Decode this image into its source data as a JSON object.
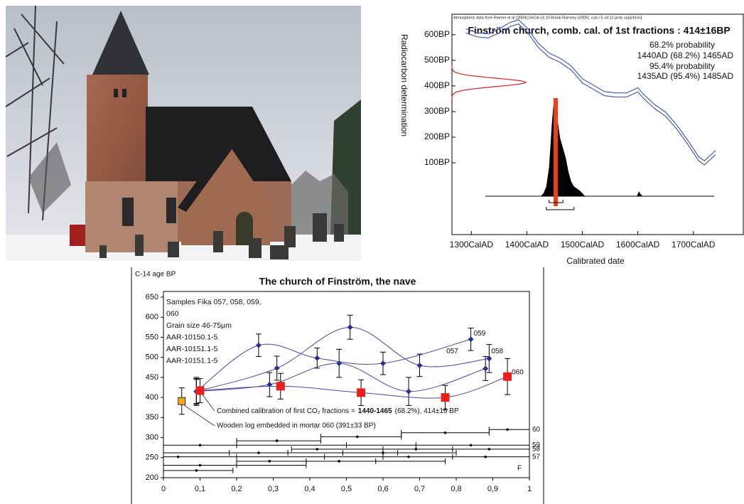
{
  "chart_data": [
    {
      "type": "line",
      "title": "Finström church, comb. cal. of 1st fractions : 414±16BP",
      "header": "Atmospheric data from Reimer et al (2004);OxCal v3.10 Bronk Ramsey (2005); cub r:5 sd:12 prob usp[chron]",
      "annotations": [
        "68.2% probability",
        "1440AD (68.2%) 1465AD",
        "95.4% probability",
        "1435AD (95.4%) 1485AD"
      ],
      "xlabel": "Calibrated date",
      "ylabel": "Radiocarbon determination",
      "xlim": [
        1265,
        1790
      ],
      "ylim": [
        -180,
        680
      ],
      "xticks": [
        {
          "value": 1300,
          "label": "1300CalAD"
        },
        {
          "value": 1400,
          "label": "1400CalAD"
        },
        {
          "value": 1500,
          "label": "1500CalAD"
        },
        {
          "value": 1600,
          "label": "1600CalAD"
        },
        {
          "value": 1700,
          "label": "1700CalAD"
        }
      ],
      "yticks": [
        {
          "value": 100,
          "label": "100BP"
        },
        {
          "value": 200,
          "label": "200BP"
        },
        {
          "value": 300,
          "label": "300BP"
        },
        {
          "value": 400,
          "label": "400BP"
        },
        {
          "value": 500,
          "label": "500BP"
        },
        {
          "value": 600,
          "label": "600BP"
        }
      ],
      "x": [
        1290,
        1310,
        1330,
        1350,
        1370,
        1385,
        1400,
        1420,
        1440,
        1460,
        1480,
        1500,
        1520,
        1540,
        1560,
        1580,
        1600,
        1610,
        1630,
        1650,
        1670,
        1690,
        1710,
        1720,
        1740
      ],
      "series": [
        {
          "color": "#4a5cb0",
          "values": [
            623,
            608,
            603,
            623,
            648,
            658,
            628,
            568,
            528,
            508,
            478,
            428,
            403,
            378,
            373,
            373,
            393,
            368,
            328,
            298,
            248,
            188,
            123,
            108,
            148
          ]
        },
        {
          "color": "#4a5cb0",
          "values": [
            607,
            592,
            587,
            607,
            632,
            642,
            612,
            552,
            512,
            492,
            462,
            412,
            387,
            362,
            357,
            357,
            377,
            352,
            312,
            282,
            232,
            172,
            107,
            92,
            132
          ]
        }
      ],
      "date_bp": 414,
      "error_bp": 16,
      "measurement_color": "#e02020",
      "probability": {
        "color": "#000000",
        "x": [
          1425,
          1430,
          1435,
          1440,
          1445,
          1448,
          1452,
          1455,
          1460,
          1465,
          1470,
          1475,
          1480,
          1485,
          1490,
          1495,
          1500,
          1505,
          1598,
          1602,
          1605,
          1609
        ],
        "values": [
          0,
          0.03,
          0.1,
          0.3,
          0.75,
          0.95,
          1.0,
          0.8,
          0.6,
          0.5,
          0.4,
          0.25,
          0.15,
          0.1,
          0.08,
          0.06,
          0.03,
          0,
          0,
          0.05,
          0.02,
          0
        ]
      },
      "marker_x": 1452,
      "marker_color": "#e8401c",
      "ranges": [
        [
          1440,
          1465
        ],
        [
          1435,
          1485
        ]
      ]
    },
    {
      "type": "scatter",
      "title": "The church of Finström, the nave",
      "ylabel": "C-14 age BP",
      "xlim": [
        0,
        1
      ],
      "ylim": [
        200,
        650
      ],
      "xticks": [
        0,
        {
          "value": 0.1,
          "label": "0,1"
        },
        {
          "value": 0.2,
          "label": "0,2"
        },
        {
          "value": 0.3,
          "label": "0,3"
        },
        {
          "value": 0.4,
          "label": "0,4"
        },
        {
          "value": 0.5,
          "label": "0,5"
        },
        {
          "value": 0.6,
          "label": "0,6"
        },
        {
          "value": 0.7,
          "label": "0,7"
        },
        {
          "value": 0.8,
          "label": "0,8"
        },
        {
          "value": 0.9,
          "label": "0,9"
        },
        1
      ],
      "yticks": [
        200,
        250,
        300,
        350,
        400,
        450,
        500,
        550,
        600,
        650
      ],
      "notes": [
        "Samples Fika 057, 058, 059,",
        "060",
        "Grain size 46-75μm",
        "AAR-10150.1-5",
        "AAR-10151.1-5",
        "AAR-10151.1-5"
      ],
      "combined_note": [
        "Combined calibration of first CO₂ fractions =",
        "1440-1465",
        "(68.2%), 414±16 BP"
      ],
      "wood_note": "Wooden log embedded in mortar 060 (391±33 BP)",
      "line_color": "#4848a0",
      "series": [
        {
          "name": "059",
          "color": "#2b2f8f",
          "marker": "diamond",
          "x": [
            0.09,
            0.26,
            0.42,
            0.6,
            0.84
          ],
          "values": [
            415,
            530,
            498,
            485,
            545
          ],
          "errors": [
            30,
            28,
            25,
            28,
            28
          ]
        },
        {
          "name": "058",
          "color": "#2b2f8f",
          "marker": "diamond",
          "x": [
            0.09,
            0.31,
            0.51,
            0.7,
            0.89
          ],
          "values": [
            415,
            473,
            575,
            480,
            497
          ],
          "errors": [
            32,
            30,
            30,
            28,
            35
          ]
        },
        {
          "name": "057",
          "color": "#2b2f8f",
          "marker": "diamond",
          "x": [
            0.09,
            0.29,
            0.48,
            0.67,
            0.88
          ],
          "values": [
            415,
            432,
            485,
            415,
            472
          ],
          "errors": [
            35,
            30,
            35,
            35,
            30
          ]
        },
        {
          "name": "060",
          "color": "#e8201c",
          "marker": "square",
          "x": [
            0.1,
            0.32,
            0.54,
            0.77,
            0.94
          ],
          "values": [
            417,
            428,
            412,
            400,
            452
          ],
          "errors": [
            30,
            32,
            32,
            30,
            45
          ]
        }
      ],
      "wood": {
        "x": 0.05,
        "value": 391,
        "error": 33,
        "color": "#f5a623"
      },
      "rows": [
        {
          "y": 320,
          "ticks": [
            0.89,
            1.0
          ],
          "dots": [
            0.94
          ],
          "label": "60"
        },
        {
          "y": 312,
          "ticks": [
            0.65,
            0.89
          ],
          "dots": [
            0.77
          ]
        },
        {
          "y": 302,
          "ticks": [
            0.43,
            0.65
          ],
          "dots": [
            0.53
          ]
        },
        {
          "y": 292,
          "ticks": [
            0.2,
            0.43
          ],
          "dots": [
            0.31
          ]
        },
        {
          "y": 281,
          "ticks": [
            0,
            0.2,
            0.5,
            0.69,
            1.0
          ],
          "dots": [
            0.1,
            0.84
          ],
          "label": "59"
        },
        {
          "y": 271,
          "ticks": [
            0.35,
            0.6,
            0.79,
            1.0
          ],
          "dots": [
            0.42,
            0.69,
            0.89
          ],
          "label": "58"
        },
        {
          "y": 262,
          "ticks": [
            0,
            0.18,
            0.34,
            0.49,
            0.64,
            0.8
          ],
          "dots": [
            0.26,
            0.6
          ]
        },
        {
          "y": 252,
          "ticks": [
            0,
            0.2,
            0.44,
            0.6,
            0.79,
            1.0
          ],
          "dots": [
            0.04,
            0.67,
            0.88
          ],
          "label": "57"
        },
        {
          "y": 241,
          "ticks": [
            0.2,
            0.39,
            0.58,
            0.77
          ],
          "dots": [
            0.29,
            0.48
          ]
        },
        {
          "y": 231,
          "ticks": [
            0,
            0.2,
            0.39
          ],
          "dots": [
            0.1
          ]
        },
        {
          "y": 218,
          "ticks": [
            0,
            0.19
          ],
          "dots": [
            0.09
          ]
        }
      ],
      "f_label": "F"
    }
  ]
}
